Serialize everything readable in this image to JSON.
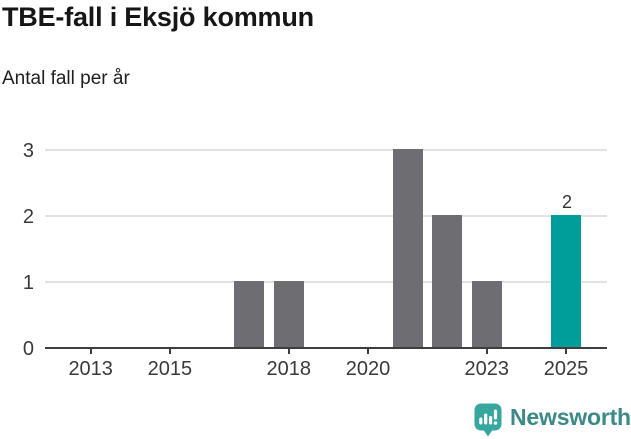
{
  "title": "TBE-fall i Eksjö kommun",
  "subtitle": "Antal fall per år",
  "footer": {
    "brand": "Newsworthy",
    "logo_icon": "newsworthy-chart-bubble-icon"
  },
  "colors": {
    "title": "#161616",
    "subtitle": "#1f1f1f",
    "bar": "#6e6e72",
    "highlight": "#009e9b",
    "gridline": "#e2e2e2",
    "axis": "#3d3d3d",
    "tick_label": "#3a3a3a",
    "value_label": "#333333",
    "brand_icon": "#36a69e",
    "brand_text": "#3a8a87"
  },
  "chart_data": {
    "type": "bar",
    "title": "TBE-fall i Eksjö kommun",
    "subtitle": "Antal fall per år",
    "xlabel": "",
    "ylabel": "Antal fall per år",
    "x": [
      2012,
      2013,
      2014,
      2015,
      2016,
      2017,
      2018,
      2019,
      2020,
      2021,
      2022,
      2023,
      2024,
      2025
    ],
    "values": [
      0,
      0,
      0,
      0,
      0,
      1,
      1,
      0,
      0,
      3,
      2,
      1,
      0,
      2
    ],
    "ylim": [
      0,
      3
    ],
    "y_ticks": [
      0,
      1,
      2,
      3
    ],
    "x_tick_years": [
      2013,
      2015,
      2018,
      2020,
      2023,
      2025
    ],
    "grid": "horizontal-y",
    "legend": "none",
    "bar_color": "#6e6e72",
    "highlight": {
      "year": 2025,
      "value": 2,
      "color": "#009e9b"
    },
    "value_labels": [
      {
        "year": 2025,
        "value": 2,
        "text": "2"
      }
    ]
  }
}
